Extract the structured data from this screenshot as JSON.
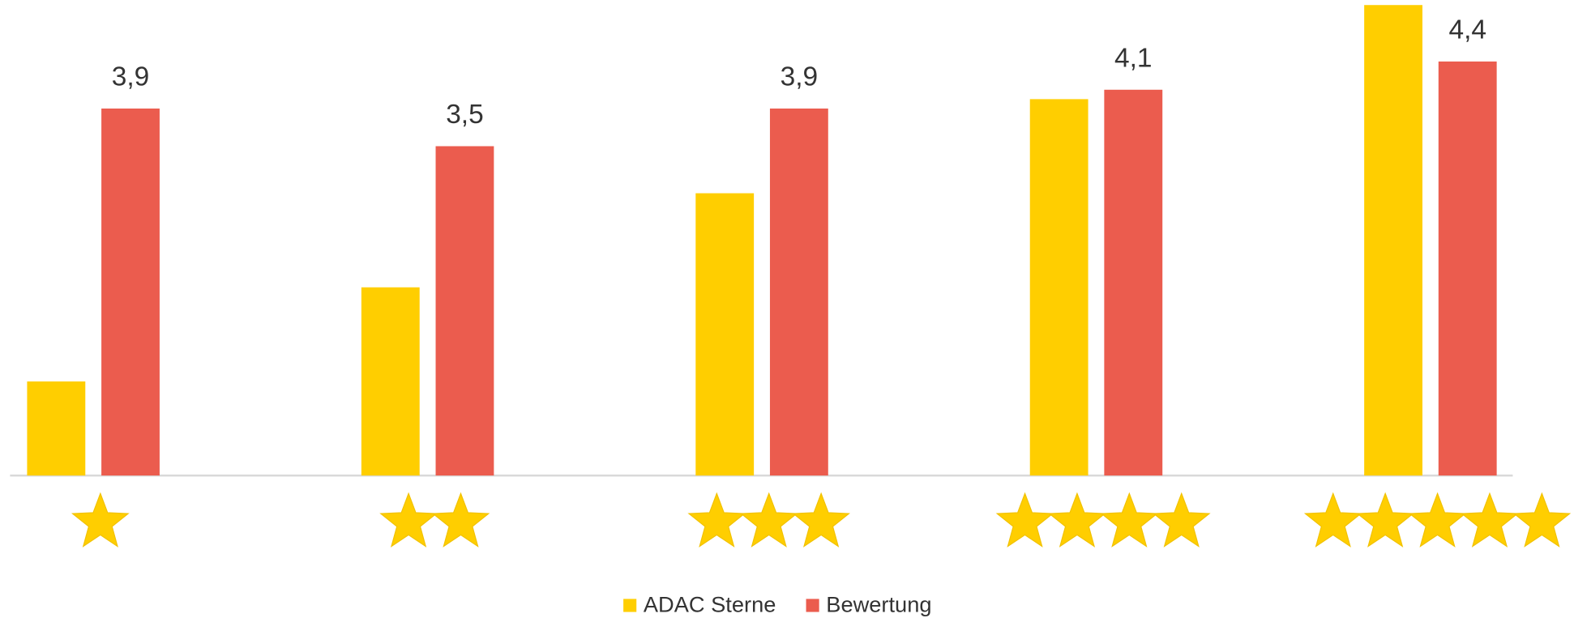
{
  "chart_data": {
    "type": "bar",
    "categories": [
      null,
      null,
      null,
      null,
      null
    ],
    "series": [
      {
        "name": "ADAC Sterne",
        "color": "#ffce00",
        "values": [
          1,
          2,
          3,
          4,
          5
        ]
      },
      {
        "name": "Bewertung",
        "color": "#eb5c4e",
        "values": [
          3.9,
          3.5,
          3.9,
          4.1,
          4.4
        ],
        "value_labels": [
          "3,9",
          "3,5",
          "3,9",
          "4,1",
          "4,4"
        ]
      }
    ],
    "ylim": [
      0,
      5
    ],
    "legend": "bottom"
  }
}
